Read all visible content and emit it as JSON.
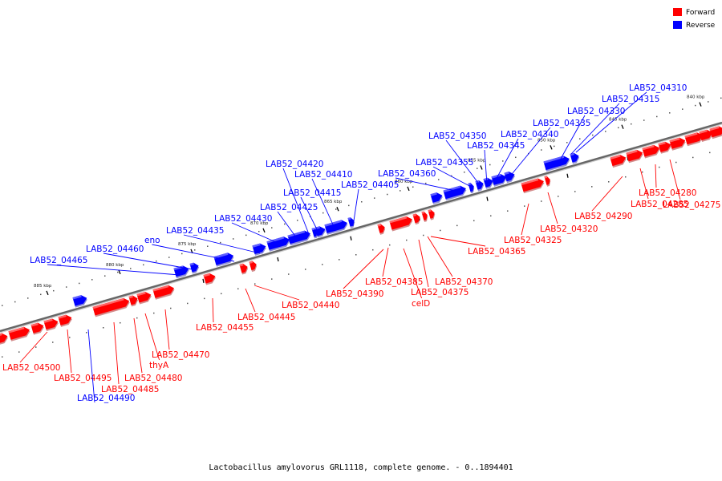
{
  "caption": "Lactobacillus amylovorus GRL1118, complete genome. - 0..1894401",
  "colors": {
    "forward": "#ff0000",
    "reverse": "#0000ff",
    "backbone": "#666666"
  },
  "legend": {
    "forward": "Forward",
    "reverse": "Reverse"
  },
  "ticks": [
    "840 kbp",
    "845 kbp",
    "850 kbp",
    "855 kbp",
    "860 kbp",
    "865 kbp",
    "870 kbp",
    "875 kbp",
    "880 kbp",
    "885 kbp"
  ],
  "forward_labels": [
    "LAB52_04275",
    "LAB52_04280",
    "LAB52_04285",
    "LAB52_04290",
    "LAB52_04320",
    "LAB52_04325",
    "LAB52_04365",
    "LAB52_04370",
    "LAB52_04375",
    "celD",
    "LAB52_04385",
    "LAB52_04390",
    "LAB52_04440",
    "LAB52_04445",
    "LAB52_04455",
    "LAB52_04470",
    "thyA",
    "LAB52_04480",
    "LAB52_04485",
    "LAB52_04495",
    "LAB52_04500"
  ],
  "reverse_labels": [
    "LAB52_04310",
    "LAB52_04315",
    "LAB52_04330",
    "LAB52_04335",
    "LAB52_04340",
    "LAB52_04345",
    "LAB52_04350",
    "LAB52_04355",
    "LAB52_04360",
    "LAB52_04405",
    "LAB52_04410",
    "LAB52_04415",
    "LAB52_04420",
    "LAB52_04425",
    "LAB52_04430",
    "LAB52_04435",
    "eno",
    "LAB52_04460",
    "LAB52_04465",
    "LAB52_04490"
  ]
}
